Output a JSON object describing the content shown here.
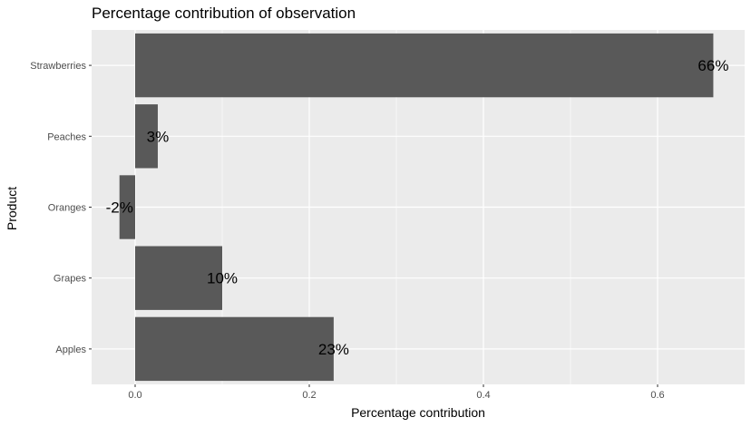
{
  "chart_data": {
    "type": "bar",
    "orientation": "horizontal",
    "title": "Percentage contribution of observation",
    "xlabel": "Percentage contribution",
    "ylabel": "Product",
    "categories": [
      "Apples",
      "Grapes",
      "Oranges",
      "Peaches",
      "Strawberries"
    ],
    "values": [
      0.228,
      0.1,
      -0.018,
      0.026,
      0.664
    ],
    "data_labels": [
      "23%",
      "10%",
      "-2%",
      "3%",
      "66%"
    ],
    "xlim": [
      -0.05,
      0.7
    ],
    "x_ticks": [
      0.0,
      0.2,
      0.4,
      0.6
    ],
    "x_tick_labels": [
      "0.0",
      "0.2",
      "0.4",
      "0.6"
    ],
    "grid": true,
    "legend": "none",
    "colors": {
      "bar": "#595959",
      "panel": "#ebebeb",
      "grid": "#ffffff",
      "tick_text": "#4d4d4d"
    }
  }
}
